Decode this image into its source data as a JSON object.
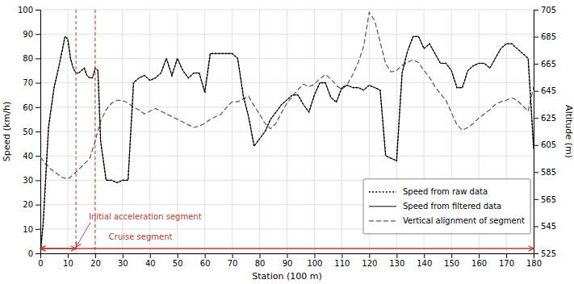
{
  "chart_data": {
    "type": "line",
    "xlabel": "Station (100 m)",
    "ylabel": "Speed (km/h)",
    "y2label": "Altitude (m)",
    "xlim": [
      0,
      180
    ],
    "ylim": [
      0,
      100
    ],
    "y2lim": [
      525,
      705
    ],
    "xticks": [
      0,
      10,
      20,
      30,
      40,
      50,
      60,
      70,
      80,
      90,
      100,
      110,
      120,
      130,
      140,
      150,
      160,
      170,
      180
    ],
    "yticks": [
      0,
      10,
      20,
      30,
      40,
      50,
      60,
      70,
      80,
      90,
      100
    ],
    "y2ticks": [
      525,
      545,
      565,
      585,
      605,
      625,
      645,
      665,
      685,
      705
    ],
    "grid": true,
    "legend": "lower right",
    "series": [
      {
        "name": "Speed from raw data",
        "color": "#000000",
        "line_style": "dotted",
        "x": [
          0,
          1,
          3,
          5,
          7,
          9,
          10,
          11,
          12,
          13,
          14,
          15,
          16,
          17,
          18,
          19,
          20,
          21,
          22,
          24,
          26,
          28,
          30,
          32,
          34,
          36,
          38,
          40,
          42,
          44,
          46,
          48,
          50,
          52,
          54,
          56,
          58,
          60,
          62,
          64,
          66,
          68,
          70,
          72,
          74,
          76,
          78,
          80,
          82,
          84,
          86,
          88,
          90,
          92,
          94,
          96,
          98,
          100,
          102,
          104,
          106,
          108,
          110,
          112,
          114,
          116,
          118,
          120,
          122,
          124,
          126,
          128,
          130,
          132,
          134,
          136,
          138,
          140,
          142,
          144,
          146,
          148,
          150,
          152,
          154,
          156,
          158,
          160,
          162,
          164,
          166,
          168,
          170,
          172,
          174,
          176,
          178,
          180
        ],
        "values": [
          0,
          12,
          52,
          68,
          78,
          89,
          88,
          80,
          76,
          74,
          74,
          75,
          76,
          73,
          72,
          72,
          76,
          75,
          46,
          30,
          30,
          29,
          30,
          30,
          70,
          72,
          73,
          71,
          72,
          74,
          80,
          73,
          80,
          75,
          72,
          74,
          74,
          66,
          82,
          82,
          82,
          82,
          82,
          80,
          65,
          56,
          44,
          47,
          50,
          55,
          58,
          61,
          63,
          65,
          65,
          61,
          58,
          65,
          70,
          70,
          64,
          62,
          68,
          69,
          68,
          68,
          67,
          69,
          68,
          67,
          40,
          39,
          38,
          74,
          83,
          89,
          89,
          84,
          86,
          82,
          78,
          78,
          75,
          68,
          68,
          75,
          77,
          78,
          78,
          76,
          80,
          84,
          86,
          86,
          84,
          82,
          80,
          43
        ]
      },
      {
        "name": "Speed from filtered data",
        "color": "#000000",
        "line_style": "solid",
        "x": [
          0,
          1,
          3,
          5,
          7,
          9,
          10,
          11,
          12,
          13,
          14,
          15,
          16,
          17,
          18,
          19,
          20,
          21,
          22,
          24,
          26,
          28,
          30,
          32,
          34,
          36,
          38,
          40,
          42,
          44,
          46,
          48,
          50,
          52,
          54,
          56,
          58,
          60,
          62,
          64,
          66,
          68,
          70,
          72,
          74,
          76,
          78,
          80,
          82,
          84,
          86,
          88,
          90,
          92,
          94,
          96,
          98,
          100,
          102,
          104,
          106,
          108,
          110,
          112,
          114,
          116,
          118,
          120,
          122,
          124,
          126,
          128,
          130,
          132,
          134,
          136,
          138,
          140,
          142,
          144,
          146,
          148,
          150,
          152,
          154,
          156,
          158,
          160,
          162,
          164,
          166,
          168,
          170,
          172,
          174,
          176,
          178,
          180
        ],
        "values": [
          0,
          12,
          52,
          68,
          78,
          89,
          88,
          80,
          76,
          74,
          74,
          75,
          76,
          73,
          72,
          72,
          76,
          75,
          46,
          30,
          30,
          29,
          30,
          30,
          70,
          72,
          73,
          71,
          72,
          74,
          80,
          73,
          80,
          75,
          72,
          74,
          74,
          66,
          82,
          82,
          82,
          82,
          82,
          80,
          65,
          56,
          44,
          47,
          50,
          55,
          58,
          61,
          63,
          65,
          65,
          61,
          58,
          65,
          70,
          70,
          64,
          62,
          68,
          69,
          68,
          68,
          67,
          69,
          68,
          67,
          40,
          39,
          38,
          74,
          83,
          89,
          89,
          84,
          86,
          82,
          78,
          78,
          75,
          68,
          68,
          75,
          77,
          78,
          78,
          76,
          80,
          84,
          86,
          86,
          84,
          82,
          80,
          43
        ]
      },
      {
        "name": "Vertical alignment of segment",
        "color": "#555555",
        "line_style": "dashed",
        "axis": "y2",
        "x": [
          0,
          2,
          4,
          6,
          8,
          10,
          12,
          14,
          16,
          18,
          20,
          22,
          24,
          26,
          28,
          30,
          32,
          34,
          36,
          38,
          40,
          42,
          44,
          46,
          48,
          50,
          52,
          54,
          56,
          58,
          60,
          62,
          64,
          66,
          68,
          70,
          72,
          74,
          76,
          78,
          80,
          82,
          84,
          86,
          88,
          90,
          92,
          94,
          96,
          98,
          100,
          102,
          104,
          106,
          108,
          110,
          112,
          114,
          116,
          118,
          120,
          122,
          124,
          126,
          128,
          130,
          132,
          134,
          136,
          138,
          140,
          142,
          144,
          146,
          148,
          150,
          152,
          154,
          156,
          158,
          160,
          162,
          164,
          166,
          168,
          170,
          172,
          174,
          176,
          178,
          180
        ],
        "values": [
          596,
          591,
          587,
          584,
          581,
          580,
          583,
          587,
          591,
          595,
          608,
          623,
          631,
          636,
          638,
          638,
          636,
          633,
          631,
          628,
          630,
          632,
          630,
          628,
          626,
          624,
          622,
          620,
          618,
          619,
          621,
          624,
          626,
          628,
          633,
          637,
          637,
          639,
          641,
          634,
          628,
          621,
          617,
          621,
          629,
          636,
          641,
          646,
          650,
          648,
          650,
          654,
          657,
          654,
          649,
          646,
          650,
          657,
          666,
          678,
          703,
          697,
          681,
          665,
          659,
          660,
          664,
          666,
          668,
          666,
          660,
          655,
          648,
          643,
          638,
          629,
          620,
          616,
          618,
          621,
          625,
          628,
          631,
          635,
          637,
          638,
          640,
          638,
          634,
          630,
          648
        ]
      }
    ],
    "vlines": [
      {
        "x": 13,
        "color": "#c0392b"
      },
      {
        "x": 20,
        "color": "#c0392b"
      }
    ],
    "segments": [
      {
        "x": [
          0,
          180
        ],
        "y": 2,
        "color": "#c0392b"
      },
      {
        "x": [
          0,
          13
        ],
        "y": 2,
        "color": "#c0392b"
      }
    ],
    "annotations": [
      {
        "text": "Initial acceleration segment",
        "x": 13,
        "y": 2.5,
        "color": "#c0392b",
        "arrow": true
      },
      {
        "text": "Cruise segment",
        "x": 25,
        "y": 5.5,
        "color": "#c0392b",
        "arrow": false
      }
    ]
  }
}
